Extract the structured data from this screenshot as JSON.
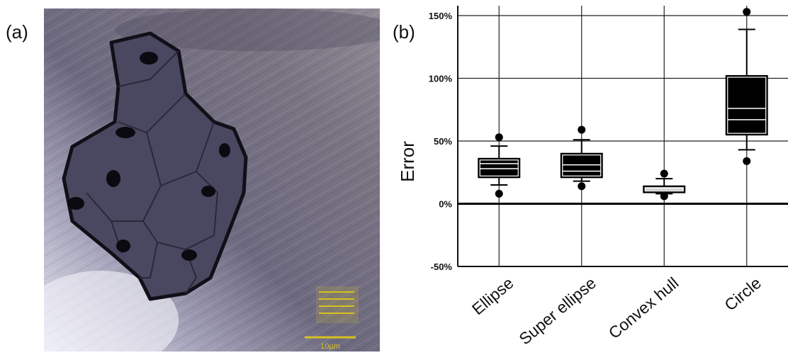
{
  "panels": {
    "a": "(a)",
    "b": "(b)"
  },
  "micrograph": {
    "scale_bar": "10µm",
    "colors": {
      "background": "#6d6a80",
      "highlight": "#e8e8f4",
      "grain": "#4a4860",
      "boundary": "#111018",
      "text": "#d8c020"
    }
  },
  "chart_data": {
    "type": "box",
    "ylabel": "Error",
    "ylim": [
      -50,
      150
    ],
    "yticks": [
      -50,
      0,
      50,
      100,
      150
    ],
    "ytick_labels": [
      "-50%",
      "0%",
      "50%",
      "100%",
      "150%"
    ],
    "grid": true,
    "categories": [
      "Ellipse",
      "Super ellipse",
      "Convex hull",
      "Circle"
    ],
    "boxes": [
      {
        "category": "Ellipse",
        "whisker_low": 15,
        "q1": 21,
        "median": 28,
        "mean": 32,
        "q3": 36,
        "whisker_high": 46,
        "outliers": [
          8,
          53
        ]
      },
      {
        "category": "Super ellipse",
        "whisker_low": 18,
        "q1": 21,
        "median": 26,
        "mean": 31,
        "q3": 40,
        "whisker_high": 51,
        "outliers": [
          14,
          59
        ]
      },
      {
        "category": "Convex hull",
        "whisker_low": 8,
        "q1": 9,
        "median": 11,
        "mean": 12,
        "q3": 14,
        "whisker_high": 20,
        "outliers": [
          6,
          24
        ]
      },
      {
        "category": "Circle",
        "whisker_low": 43,
        "q1": 55,
        "median": 67,
        "mean": 76,
        "q3": 102,
        "whisker_high": 139,
        "outliers": [
          34,
          153
        ]
      }
    ],
    "colors": {
      "box_fill": "#000000",
      "line": "#000000",
      "inner": "#ffffff"
    }
  }
}
